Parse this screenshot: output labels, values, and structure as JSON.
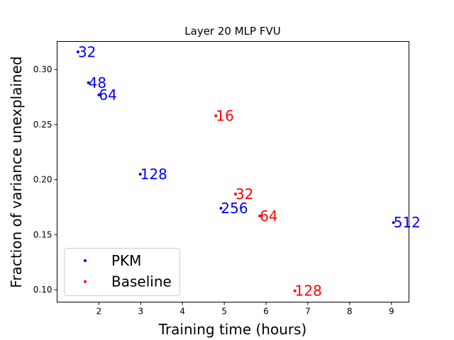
{
  "chart_data": {
    "type": "scatter",
    "title": "Layer 20 MLP FVU",
    "xlabel": "Training time (hours)",
    "ylabel": "Fraction of variance unexplained",
    "xlim": [
      1.0,
      9.42
    ],
    "ylim": [
      0.0888,
      0.3255
    ],
    "xticks": [
      2,
      3,
      4,
      5,
      6,
      7,
      8,
      9
    ],
    "yticks": [
      0.1,
      0.15,
      0.2,
      0.25,
      0.3
    ],
    "xtick_labels": [
      "2",
      "3",
      "4",
      "5",
      "6",
      "7",
      "8",
      "9"
    ],
    "ytick_labels": [
      "0.10",
      "0.15",
      "0.20",
      "0.25",
      "0.30"
    ],
    "legend_position": "lower-left",
    "grid": false,
    "series": [
      {
        "name": "PKM",
        "color": "#0000ff",
        "points": [
          {
            "x": 1.5,
            "y": 0.316,
            "label": "32"
          },
          {
            "x": 1.75,
            "y": 0.288,
            "label": "48"
          },
          {
            "x": 2.0,
            "y": 0.277,
            "label": "64"
          },
          {
            "x": 2.99,
            "y": 0.205,
            "label": "128"
          },
          {
            "x": 4.92,
            "y": 0.174,
            "label": "256"
          },
          {
            "x": 9.05,
            "y": 0.161,
            "label": "512"
          }
        ]
      },
      {
        "name": "Baseline",
        "color": "#ff0000",
        "points": [
          {
            "x": 4.8,
            "y": 0.258,
            "label": "16"
          },
          {
            "x": 5.27,
            "y": 0.187,
            "label": "32"
          },
          {
            "x": 5.85,
            "y": 0.167,
            "label": "64"
          },
          {
            "x": 6.69,
            "y": 0.099,
            "label": "128"
          }
        ]
      }
    ]
  }
}
